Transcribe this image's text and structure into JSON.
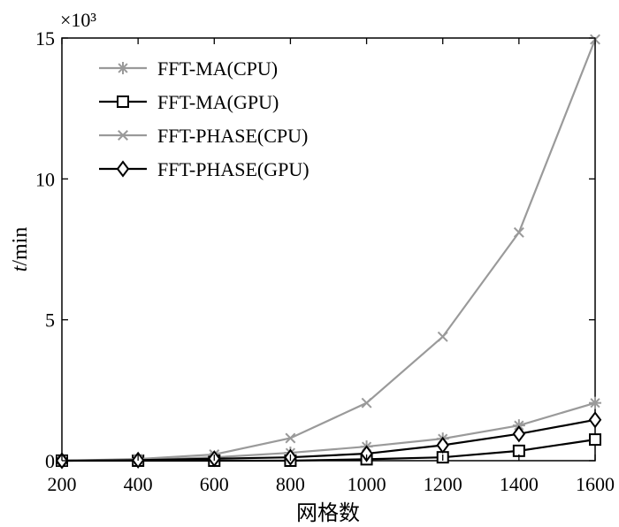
{
  "chart_data": {
    "type": "line",
    "title": "",
    "xlabel": "网格数",
    "ylabel_italic": "t",
    "ylabel_rest": "/min",
    "y_multiplier": "×10³",
    "xlim": [
      200,
      1600
    ],
    "ylim": [
      0,
      15
    ],
    "x_ticks": [
      200,
      400,
      600,
      800,
      1000,
      1200,
      1400,
      1600
    ],
    "y_ticks": [
      0,
      5,
      10,
      15
    ],
    "x": [
      200,
      400,
      600,
      800,
      1000,
      1200,
      1400,
      1600
    ],
    "series": [
      {
        "name": "FFT-MA(CPU)",
        "color": "#9a9a9a",
        "marker": "asterisk",
        "values": [
          0.0,
          0.03,
          0.12,
          0.28,
          0.5,
          0.78,
          1.25,
          2.05
        ]
      },
      {
        "name": "FFT-MA(GPU)",
        "color": "#000000",
        "marker": "square",
        "values": [
          0.0,
          0.0,
          0.0,
          0.0,
          0.05,
          0.12,
          0.35,
          0.75
        ]
      },
      {
        "name": "FFT-PHASE(CPU)",
        "color": "#9a9a9a",
        "marker": "x",
        "values": [
          0.0,
          0.06,
          0.22,
          0.8,
          2.05,
          4.4,
          8.1,
          14.95
        ]
      },
      {
        "name": "FFT-PHASE(GPU)",
        "color": "#000000",
        "marker": "diamond",
        "values": [
          0.0,
          0.02,
          0.07,
          0.12,
          0.25,
          0.55,
          0.95,
          1.45
        ]
      }
    ],
    "legend": "top-left",
    "grid": false
  }
}
